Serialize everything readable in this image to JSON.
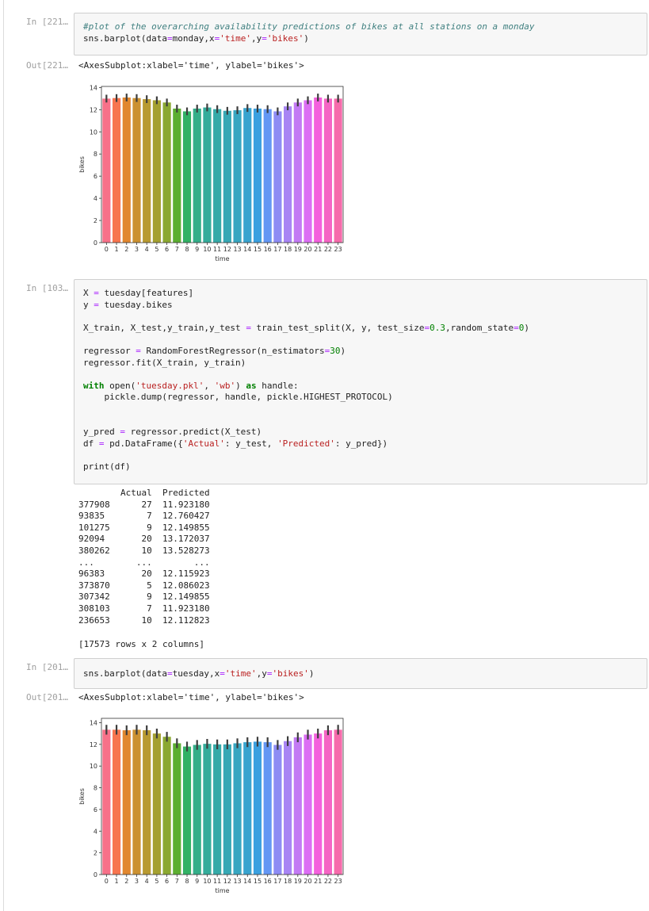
{
  "cells": [
    {
      "prompt": "In [221…",
      "code": [
        [
          "#plot of the overarching availability predictions of bikes at all stations on a monday",
          "sns.barplot(data=monday,x='time',y='bikes')"
        ]
      ],
      "out_prompt": "Out[221…",
      "output": "<AxesSubplot:xlabel='time', ylabel='bikes'>"
    },
    {
      "prompt": "In [103…",
      "code": [
        [
          "X = tuesday[features]",
          "y = tuesday.bikes"
        ],
        [
          "X_train, X_test,y_train,y_test = train_test_split(X, y, test_size=0.3,random_state=0)"
        ],
        [
          "regressor = RandomForestRegressor(n_estimators=30)",
          "regressor.fit(X_train, y_train)"
        ],
        [
          "with open('tuesday.pkl', 'wb') as handle:",
          "    pickle.dump(regressor, handle, pickle.HIGHEST_PROTOCOL)"
        ],
        [
          "y_pred = regressor.predict(X_test)",
          "df = pd.DataFrame({'Actual': y_test, 'Predicted': y_pred})"
        ],
        [
          "print(df)"
        ]
      ],
      "table": [
        "        Actual  Predicted",
        "377908      27  11.923180",
        "93835        7  12.760427",
        "101275       9  12.149855",
        "92094       20  13.172037",
        "380262      10  13.528273",
        "...        ...        ...",
        "96383       20  12.115923",
        "373870       5  12.086023",
        "307342       9  12.149855",
        "308103       7  11.923180",
        "236653      10  12.112823"
      ],
      "footer": "[17573 rows x 2 columns]"
    },
    {
      "prompt": "In [201…",
      "code": [
        [
          "sns.barplot(data=tuesday,x='time',y='bikes')"
        ]
      ],
      "out_prompt": "Out[201…",
      "output": "<AxesSubplot:xlabel='time', ylabel='bikes'>"
    }
  ],
  "chart_data": [
    {
      "type": "bar",
      "xlabel": "time",
      "ylabel": "bikes",
      "categories": [
        "0",
        "1",
        "2",
        "3",
        "4",
        "5",
        "6",
        "7",
        "8",
        "9",
        "10",
        "11",
        "12",
        "13",
        "14",
        "15",
        "16",
        "17",
        "18",
        "19",
        "20",
        "21",
        "22",
        "23"
      ],
      "values": [
        13.0,
        13.05,
        13.1,
        13.05,
        12.95,
        12.85,
        12.65,
        12.1,
        11.85,
        12.1,
        12.2,
        12.05,
        11.9,
        11.95,
        12.15,
        12.1,
        12.05,
        11.85,
        12.3,
        12.65,
        12.85,
        13.1,
        13.0,
        13.0
      ],
      "errors": [
        0.35,
        0.35,
        0.35,
        0.35,
        0.35,
        0.35,
        0.35,
        0.35,
        0.35,
        0.35,
        0.35,
        0.35,
        0.35,
        0.35,
        0.35,
        0.35,
        0.35,
        0.35,
        0.35,
        0.35,
        0.35,
        0.35,
        0.35,
        0.35
      ],
      "colors": [
        "#f77189",
        "#f7754f",
        "#e1872f",
        "#cb9131",
        "#b89a31",
        "#a4a031",
        "#8ba831",
        "#5cae31",
        "#32b165",
        "#34ae89",
        "#35ac9b",
        "#36aaa8",
        "#37a8b5",
        "#38a6c1",
        "#39a3cf",
        "#3ba0e0",
        "#6497f4",
        "#8e8cf4",
        "#a885f4",
        "#c37af4",
        "#dc6ef4",
        "#f461dd",
        "#f565c4",
        "#f66bab"
      ],
      "ylim": [
        0,
        14.1
      ],
      "yticks": [
        0,
        2,
        4,
        6,
        8,
        10,
        12,
        14
      ]
    },
    {
      "type": "bar",
      "xlabel": "time",
      "ylabel": "bikes",
      "categories": [
        "0",
        "1",
        "2",
        "3",
        "4",
        "5",
        "6",
        "7",
        "8",
        "9",
        "10",
        "11",
        "12",
        "13",
        "14",
        "15",
        "16",
        "17",
        "18",
        "19",
        "20",
        "21",
        "22",
        "23"
      ],
      "values": [
        13.35,
        13.35,
        13.3,
        13.35,
        13.3,
        13.0,
        12.7,
        12.1,
        11.8,
        11.95,
        12.05,
        12.0,
        12.0,
        12.1,
        12.2,
        12.25,
        12.2,
        11.95,
        12.3,
        12.65,
        12.9,
        13.0,
        13.3,
        13.35
      ],
      "errors": [
        0.45,
        0.45,
        0.45,
        0.45,
        0.45,
        0.45,
        0.45,
        0.45,
        0.45,
        0.45,
        0.45,
        0.45,
        0.45,
        0.45,
        0.45,
        0.45,
        0.45,
        0.45,
        0.45,
        0.45,
        0.45,
        0.45,
        0.45,
        0.45
      ],
      "colors": [
        "#f77189",
        "#f7754f",
        "#e1872f",
        "#cb9131",
        "#b89a31",
        "#a4a031",
        "#8ba831",
        "#5cae31",
        "#32b165",
        "#34ae89",
        "#35ac9b",
        "#36aaa8",
        "#37a8b5",
        "#38a6c1",
        "#39a3cf",
        "#3ba0e0",
        "#6497f4",
        "#8e8cf4",
        "#a885f4",
        "#c37af4",
        "#dc6ef4",
        "#f461dd",
        "#f565c4",
        "#f66bab"
      ],
      "ylim": [
        0,
        14.4
      ],
      "yticks": [
        0,
        2,
        4,
        6,
        8,
        10,
        12,
        14
      ]
    }
  ]
}
